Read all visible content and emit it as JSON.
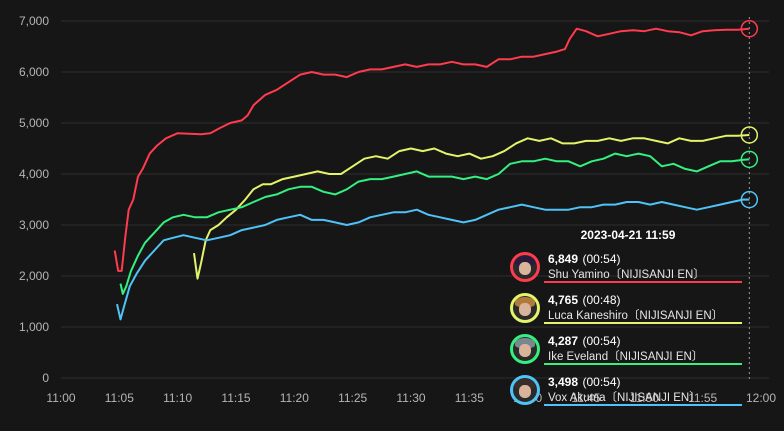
{
  "chart_data": {
    "type": "line",
    "xlabel": "",
    "ylabel": "",
    "ylim": [
      0,
      7000
    ],
    "xlim": [
      "11:00",
      "12:00"
    ],
    "x_ticks": [
      "11:00",
      "11:05",
      "11:10",
      "11:15",
      "11:20",
      "11:25",
      "11:30",
      "11:35",
      "11:40",
      "11:45",
      "11:50",
      "11:55",
      "12:00"
    ],
    "y_ticks": [
      "0",
      "1,000",
      "2,000",
      "3,000",
      "4,000",
      "5,000",
      "6,000",
      "7,000"
    ],
    "grid": true,
    "legend": "tooltip bottom-right",
    "x_unit_note": "x values are minutes past 11:00",
    "series": [
      {
        "name": "Shu Yamino",
        "color": "#ff3b4e",
        "points": [
          [
            4.6,
            2500
          ],
          [
            4.9,
            2100
          ],
          [
            5.2,
            2100
          ],
          [
            5.5,
            2750
          ],
          [
            5.8,
            3300
          ],
          [
            6.2,
            3500
          ],
          [
            6.6,
            3950
          ],
          [
            7,
            4100
          ],
          [
            7.6,
            4400
          ],
          [
            8.2,
            4550
          ],
          [
            9,
            4700
          ],
          [
            10,
            4800
          ],
          [
            11,
            4790
          ],
          [
            12,
            4780
          ],
          [
            12.8,
            4800
          ],
          [
            13.6,
            4900
          ],
          [
            14.5,
            5000
          ],
          [
            15.5,
            5050
          ],
          [
            16,
            5150
          ],
          [
            16.5,
            5350
          ],
          [
            17.5,
            5550
          ],
          [
            18.5,
            5650
          ],
          [
            19.5,
            5800
          ],
          [
            20.5,
            5950
          ],
          [
            21.5,
            6000
          ],
          [
            22.5,
            5950
          ],
          [
            23.5,
            5950
          ],
          [
            24.5,
            5900
          ],
          [
            25.5,
            6000
          ],
          [
            26.5,
            6050
          ],
          [
            27.5,
            6050
          ],
          [
            28.5,
            6100
          ],
          [
            29.5,
            6150
          ],
          [
            30.5,
            6100
          ],
          [
            31.5,
            6150
          ],
          [
            32.5,
            6150
          ],
          [
            33.5,
            6200
          ],
          [
            34.5,
            6150
          ],
          [
            35.5,
            6150
          ],
          [
            36.5,
            6100
          ],
          [
            37.5,
            6250
          ],
          [
            38.5,
            6250
          ],
          [
            39.5,
            6300
          ],
          [
            40.5,
            6300
          ],
          [
            41.5,
            6350
          ],
          [
            42.5,
            6400
          ],
          [
            43.2,
            6450
          ],
          [
            43.6,
            6650
          ],
          [
            44.2,
            6850
          ],
          [
            45,
            6800
          ],
          [
            46,
            6700
          ],
          [
            47,
            6750
          ],
          [
            48,
            6800
          ],
          [
            49,
            6820
          ],
          [
            50,
            6800
          ],
          [
            51,
            6850
          ],
          [
            52,
            6800
          ],
          [
            53,
            6780
          ],
          [
            54,
            6720
          ],
          [
            55,
            6800
          ],
          [
            56,
            6820
          ],
          [
            57,
            6830
          ],
          [
            58,
            6830
          ],
          [
            59,
            6849
          ]
        ]
      },
      {
        "name": "Luca Kaneshiro",
        "color": "#e4f46a",
        "points": [
          [
            11.4,
            2450
          ],
          [
            11.7,
            1950
          ],
          [
            12,
            2250
          ],
          [
            12.4,
            2700
          ],
          [
            12.8,
            2900
          ],
          [
            13.5,
            3000
          ],
          [
            14.2,
            3150
          ],
          [
            15,
            3300
          ],
          [
            15.8,
            3500
          ],
          [
            16.5,
            3700
          ],
          [
            17.3,
            3800
          ],
          [
            18,
            3800
          ],
          [
            19,
            3900
          ],
          [
            20,
            3950
          ],
          [
            21,
            4000
          ],
          [
            22,
            4050
          ],
          [
            23,
            4000
          ],
          [
            24,
            4000
          ],
          [
            25,
            4150
          ],
          [
            26,
            4300
          ],
          [
            27,
            4350
          ],
          [
            28,
            4300
          ],
          [
            29,
            4450
          ],
          [
            30,
            4500
          ],
          [
            31,
            4450
          ],
          [
            32,
            4500
          ],
          [
            33,
            4400
          ],
          [
            34,
            4350
          ],
          [
            35,
            4400
          ],
          [
            36,
            4300
          ],
          [
            37,
            4350
          ],
          [
            38,
            4450
          ],
          [
            39,
            4600
          ],
          [
            40,
            4700
          ],
          [
            41,
            4650
          ],
          [
            42,
            4700
          ],
          [
            43,
            4600
          ],
          [
            44,
            4600
          ],
          [
            45,
            4650
          ],
          [
            46,
            4650
          ],
          [
            47,
            4700
          ],
          [
            48,
            4650
          ],
          [
            49,
            4700
          ],
          [
            50,
            4700
          ],
          [
            51,
            4650
          ],
          [
            52,
            4600
          ],
          [
            53,
            4700
          ],
          [
            54,
            4650
          ],
          [
            55,
            4650
          ],
          [
            56,
            4700
          ],
          [
            57,
            4750
          ],
          [
            58,
            4750
          ],
          [
            59,
            4765
          ]
        ]
      },
      {
        "name": "Ike Eveland",
        "color": "#34f07f",
        "points": [
          [
            5.1,
            1850
          ],
          [
            5.3,
            1650
          ],
          [
            5.6,
            1800
          ],
          [
            6,
            2100
          ],
          [
            6.6,
            2400
          ],
          [
            7.2,
            2650
          ],
          [
            8,
            2850
          ],
          [
            8.8,
            3050
          ],
          [
            9.6,
            3150
          ],
          [
            10.5,
            3200
          ],
          [
            11.5,
            3150
          ],
          [
            12.5,
            3150
          ],
          [
            13.5,
            3250
          ],
          [
            14.5,
            3300
          ],
          [
            15.5,
            3350
          ],
          [
            16.5,
            3450
          ],
          [
            17.5,
            3550
          ],
          [
            18.5,
            3600
          ],
          [
            19.5,
            3700
          ],
          [
            20.5,
            3750
          ],
          [
            21.5,
            3750
          ],
          [
            22.5,
            3650
          ],
          [
            23.5,
            3600
          ],
          [
            24.5,
            3700
          ],
          [
            25.5,
            3850
          ],
          [
            26.5,
            3900
          ],
          [
            27.5,
            3900
          ],
          [
            28.5,
            3950
          ],
          [
            29.5,
            4000
          ],
          [
            30.5,
            4050
          ],
          [
            31.5,
            3950
          ],
          [
            32.5,
            3950
          ],
          [
            33.5,
            3950
          ],
          [
            34.5,
            3900
          ],
          [
            35.5,
            3950
          ],
          [
            36.5,
            3900
          ],
          [
            37.5,
            4000
          ],
          [
            38.5,
            4200
          ],
          [
            39.5,
            4250
          ],
          [
            40.5,
            4250
          ],
          [
            41.5,
            4300
          ],
          [
            42.5,
            4250
          ],
          [
            43.5,
            4250
          ],
          [
            44.5,
            4150
          ],
          [
            45.5,
            4250
          ],
          [
            46.5,
            4300
          ],
          [
            47.5,
            4400
          ],
          [
            48.5,
            4350
          ],
          [
            49.5,
            4400
          ],
          [
            50.5,
            4350
          ],
          [
            51.5,
            4150
          ],
          [
            52.5,
            4200
          ],
          [
            53.5,
            4100
          ],
          [
            54.5,
            4050
          ],
          [
            55.5,
            4150
          ],
          [
            56.5,
            4250
          ],
          [
            57.5,
            4250
          ],
          [
            58.5,
            4280
          ],
          [
            59,
            4287
          ]
        ]
      },
      {
        "name": "Vox Akuma",
        "color": "#4fc3f7",
        "points": [
          [
            4.8,
            1450
          ],
          [
            5.1,
            1150
          ],
          [
            5.4,
            1400
          ],
          [
            5.9,
            1800
          ],
          [
            6.5,
            2050
          ],
          [
            7.2,
            2300
          ],
          [
            8,
            2500
          ],
          [
            8.8,
            2700
          ],
          [
            9.6,
            2750
          ],
          [
            10.5,
            2800
          ],
          [
            11.5,
            2750
          ],
          [
            12.5,
            2700
          ],
          [
            13.5,
            2750
          ],
          [
            14.5,
            2800
          ],
          [
            15.5,
            2900
          ],
          [
            16.5,
            2950
          ],
          [
            17.5,
            3000
          ],
          [
            18.5,
            3100
          ],
          [
            19.5,
            3150
          ],
          [
            20.5,
            3200
          ],
          [
            21.5,
            3100
          ],
          [
            22.5,
            3100
          ],
          [
            23.5,
            3050
          ],
          [
            24.5,
            3000
          ],
          [
            25.5,
            3050
          ],
          [
            26.5,
            3150
          ],
          [
            27.5,
            3200
          ],
          [
            28.5,
            3250
          ],
          [
            29.5,
            3250
          ],
          [
            30.5,
            3300
          ],
          [
            31.5,
            3200
          ],
          [
            32.5,
            3150
          ],
          [
            33.5,
            3100
          ],
          [
            34.5,
            3050
          ],
          [
            35.5,
            3100
          ],
          [
            36.5,
            3200
          ],
          [
            37.5,
            3300
          ],
          [
            38.5,
            3350
          ],
          [
            39.5,
            3400
          ],
          [
            40.5,
            3350
          ],
          [
            41.5,
            3300
          ],
          [
            42.5,
            3300
          ],
          [
            43.5,
            3300
          ],
          [
            44.5,
            3350
          ],
          [
            45.5,
            3350
          ],
          [
            46.5,
            3400
          ],
          [
            47.5,
            3400
          ],
          [
            48.5,
            3450
          ],
          [
            49.5,
            3450
          ],
          [
            50.5,
            3400
          ],
          [
            51.5,
            3450
          ],
          [
            52.5,
            3400
          ],
          [
            53.5,
            3350
          ],
          [
            54.5,
            3300
          ],
          [
            55.5,
            3350
          ],
          [
            56.5,
            3400
          ],
          [
            57.5,
            3450
          ],
          [
            58.5,
            3500
          ],
          [
            59,
            3498
          ]
        ]
      }
    ]
  },
  "tooltip": {
    "title": "2023-04-21 11:59",
    "rows": [
      {
        "value": "6,849",
        "time": "(00:54)",
        "name": "Shu Yamino〔NIJISANJI EN〕",
        "color": "#ff3b4e",
        "hair": "#2b1a3d"
      },
      {
        "value": "4,765",
        "time": "(00:48)",
        "name": "Luca Kaneshiro〔NIJISANJI EN〕",
        "color": "#e4f46a",
        "hair": "#b07a3a"
      },
      {
        "value": "4,287",
        "time": "(00:54)",
        "name": "Ike Eveland〔NIJISANJI EN〕",
        "color": "#34f07f",
        "hair": "#7a8790"
      },
      {
        "value": "3,498",
        "time": "(00:54)",
        "name": "Vox Akuma〔NIJISANJI EN〕",
        "color": "#4fc3f7",
        "hair": "#3a2e2a"
      }
    ]
  }
}
